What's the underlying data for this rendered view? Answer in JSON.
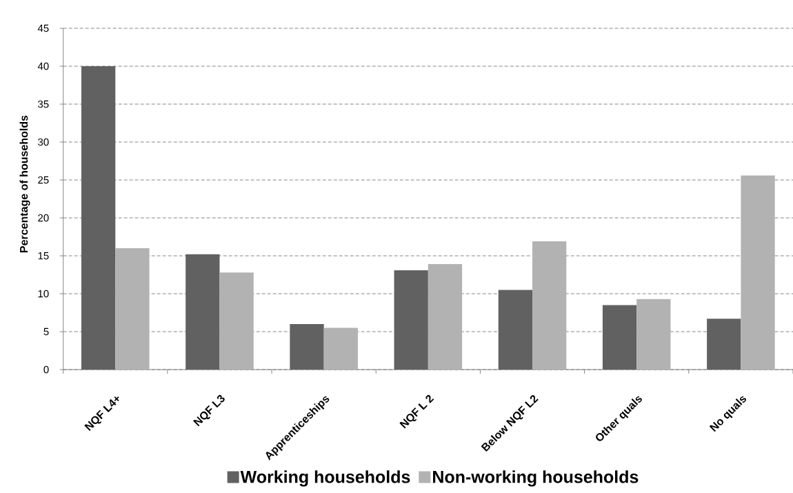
{
  "chart_data": {
    "type": "bar",
    "ylabel": "Percentage of households",
    "categories": [
      "NQF L4+",
      "NQF L3",
      "Apprenticeships",
      "NQF L 2",
      "Below NQF L2",
      "Other quals",
      "No quals"
    ],
    "series": [
      {
        "name": "Working households",
        "color": "#616161",
        "values": [
          40.0,
          15.2,
          6.0,
          13.1,
          10.5,
          8.5,
          6.7
        ]
      },
      {
        "name": "Non-working households",
        "color": "#b2b2b2",
        "values": [
          16.0,
          12.8,
          5.5,
          13.9,
          16.9,
          9.3,
          25.6
        ]
      }
    ],
    "ylim": [
      0,
      45
    ],
    "yticks": [
      0,
      5,
      10,
      15,
      20,
      25,
      30,
      35,
      40,
      45
    ],
    "grid": "y",
    "legend": "bottom"
  }
}
